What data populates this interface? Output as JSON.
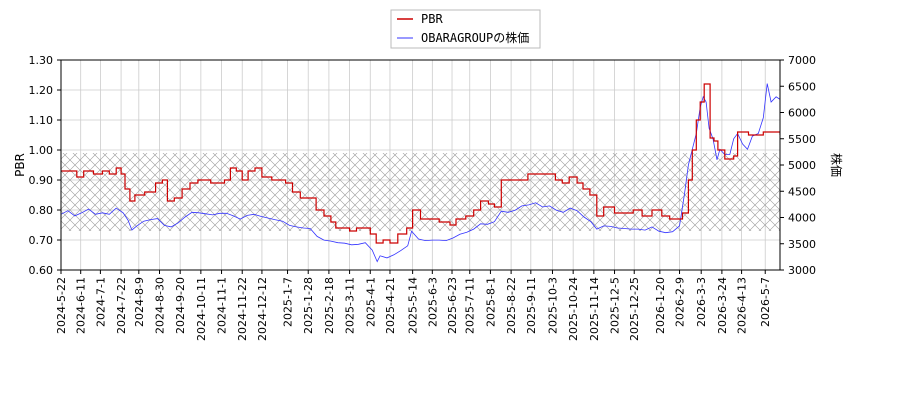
{
  "chart_data": {
    "type": "line",
    "legend": {
      "placement": "top-center",
      "entries": [
        {
          "label": "PBR",
          "color": "#cc0000"
        },
        {
          "label": "OBARAGROUPの株価",
          "color": "#3333ff"
        }
      ]
    },
    "xlabel": "",
    "ylabel": "PBR",
    "ylabel_right": "株価",
    "ylim": [
      0.6,
      1.3
    ],
    "ylim_right": [
      3000,
      7000
    ],
    "yticks": [
      "0.60",
      "0.70",
      "0.80",
      "0.90",
      "1.00",
      "1.10",
      "1.20",
      "1.30"
    ],
    "yticks_right": [
      "3000",
      "3500",
      "4000",
      "4500",
      "5000",
      "5500",
      "6000",
      "6500",
      "7000"
    ],
    "x_range": [
      "2024-05-22",
      "2026-05-22"
    ],
    "x_tick_labels": [
      "2024-5-22",
      "2024-6-11",
      "2024-7-1",
      "2024-7-22",
      "2024-8-9",
      "2024-8-30",
      "2024-9-20",
      "2024-10-11",
      "2024-11-1",
      "2024-11-22",
      "2024-12-12",
      "2025-1-7",
      "2025-1-28",
      "2025-2-18",
      "2025-3-11",
      "2025-4-1",
      "2025-4-21",
      "2025-5-14",
      "2025-6-3",
      "2025-6-23",
      "2025-7-11",
      "2025-8-1",
      "2025-8-22",
      "2025-9-11",
      "2025-10-3",
      "2025-10-24",
      "2025-11-14",
      "2025-12-5",
      "2025-12-25",
      "2026-1-20",
      "2026-2-9",
      "2026-3-3",
      "2026-3-24",
      "2026-4-13",
      "2026-5-7"
    ],
    "grid": true,
    "shaded_band": {
      "from": 0.73,
      "to": 0.99,
      "pattern": "crosshatch"
    },
    "series": [
      {
        "name": "PBR",
        "axis": "left",
        "color": "#cc0000",
        "points": [
          [
            "2024-05-22",
            0.93
          ],
          [
            "2024-06-04",
            0.93
          ],
          [
            "2024-06-07",
            0.91
          ],
          [
            "2024-06-14",
            0.93
          ],
          [
            "2024-06-24",
            0.92
          ],
          [
            "2024-07-03",
            0.93
          ],
          [
            "2024-07-10",
            0.92
          ],
          [
            "2024-07-17",
            0.94
          ],
          [
            "2024-07-22",
            0.92
          ],
          [
            "2024-07-26",
            0.87
          ],
          [
            "2024-07-31",
            0.83
          ],
          [
            "2024-08-05",
            0.85
          ],
          [
            "2024-08-15",
            0.86
          ],
          [
            "2024-08-26",
            0.89
          ],
          [
            "2024-09-02",
            0.9
          ],
          [
            "2024-09-07",
            0.83
          ],
          [
            "2024-09-14",
            0.84
          ],
          [
            "2024-09-22",
            0.87
          ],
          [
            "2024-09-30",
            0.89
          ],
          [
            "2024-10-08",
            0.9
          ],
          [
            "2024-10-21",
            0.89
          ],
          [
            "2024-11-04",
            0.9
          ],
          [
            "2024-11-10",
            0.94
          ],
          [
            "2024-11-16",
            0.93
          ],
          [
            "2024-11-22",
            0.9
          ],
          [
            "2024-11-28",
            0.93
          ],
          [
            "2024-12-05",
            0.94
          ],
          [
            "2024-12-12",
            0.91
          ],
          [
            "2024-12-22",
            0.9
          ],
          [
            "2025-01-05",
            0.89
          ],
          [
            "2025-01-12",
            0.86
          ],
          [
            "2025-01-20",
            0.84
          ],
          [
            "2025-01-30",
            0.84
          ],
          [
            "2025-02-05",
            0.8
          ],
          [
            "2025-02-13",
            0.78
          ],
          [
            "2025-02-20",
            0.76
          ],
          [
            "2025-02-25",
            0.74
          ],
          [
            "2025-03-05",
            0.74
          ],
          [
            "2025-03-11",
            0.73
          ],
          [
            "2025-03-18",
            0.74
          ],
          [
            "2025-03-27",
            0.74
          ],
          [
            "2025-04-01",
            0.72
          ],
          [
            "2025-04-07",
            0.69
          ],
          [
            "2025-04-14",
            0.7
          ],
          [
            "2025-04-21",
            0.69
          ],
          [
            "2025-04-29",
            0.72
          ],
          [
            "2025-05-08",
            0.74
          ],
          [
            "2025-05-14",
            0.8
          ],
          [
            "2025-05-22",
            0.77
          ],
          [
            "2025-06-03",
            0.77
          ],
          [
            "2025-06-10",
            0.76
          ],
          [
            "2025-06-21",
            0.75
          ],
          [
            "2025-06-27",
            0.77
          ],
          [
            "2025-07-07",
            0.78
          ],
          [
            "2025-07-15",
            0.8
          ],
          [
            "2025-07-22",
            0.83
          ],
          [
            "2025-07-30",
            0.82
          ],
          [
            "2025-08-05",
            0.81
          ],
          [
            "2025-08-12",
            0.9
          ],
          [
            "2025-08-22",
            0.9
          ],
          [
            "2025-09-03",
            0.9
          ],
          [
            "2025-09-08",
            0.92
          ],
          [
            "2025-09-20",
            0.92
          ],
          [
            "2025-09-30",
            0.92
          ],
          [
            "2025-10-06",
            0.9
          ],
          [
            "2025-10-13",
            0.89
          ],
          [
            "2025-10-20",
            0.91
          ],
          [
            "2025-10-28",
            0.89
          ],
          [
            "2025-11-03",
            0.87
          ],
          [
            "2025-11-10",
            0.85
          ],
          [
            "2025-11-17",
            0.78
          ],
          [
            "2025-11-24",
            0.81
          ],
          [
            "2025-12-05",
            0.79
          ],
          [
            "2025-12-14",
            0.79
          ],
          [
            "2025-12-24",
            0.8
          ],
          [
            "2026-01-02",
            0.78
          ],
          [
            "2026-01-12",
            0.8
          ],
          [
            "2026-01-22",
            0.78
          ],
          [
            "2026-01-30",
            0.77
          ],
          [
            "2026-02-06",
            0.77
          ],
          [
            "2026-02-12",
            0.79
          ],
          [
            "2026-02-18",
            0.9
          ],
          [
            "2026-02-22",
            1.0
          ],
          [
            "2026-02-26",
            1.1
          ],
          [
            "2026-03-02",
            1.16
          ],
          [
            "2026-03-06",
            1.22
          ],
          [
            "2026-03-12",
            1.04
          ],
          [
            "2026-03-16",
            1.03
          ],
          [
            "2026-03-20",
            1.0
          ],
          [
            "2026-03-27",
            0.97
          ],
          [
            "2026-04-05",
            0.98
          ],
          [
            "2026-04-09",
            1.06
          ],
          [
            "2026-04-20",
            1.05
          ],
          [
            "2026-04-28",
            1.05
          ],
          [
            "2026-05-05",
            1.06
          ],
          [
            "2026-05-22",
            1.05
          ]
        ]
      },
      {
        "name": "OBARAGROUPの株価",
        "axis": "right",
        "color": "#3333ff",
        "points": [
          [
            "2024-05-22",
            4060
          ],
          [
            "2024-05-29",
            4130
          ],
          [
            "2024-06-05",
            4030
          ],
          [
            "2024-06-12",
            4090
          ],
          [
            "2024-06-19",
            4160
          ],
          [
            "2024-06-26",
            4060
          ],
          [
            "2024-07-03",
            4090
          ],
          [
            "2024-07-10",
            4060
          ],
          [
            "2024-07-17",
            4180
          ],
          [
            "2024-07-24",
            4090
          ],
          [
            "2024-07-29",
            3950
          ],
          [
            "2024-08-02",
            3760
          ],
          [
            "2024-08-07",
            3840
          ],
          [
            "2024-08-14",
            3930
          ],
          [
            "2024-08-21",
            3960
          ],
          [
            "2024-08-28",
            3980
          ],
          [
            "2024-09-04",
            3850
          ],
          [
            "2024-09-11",
            3820
          ],
          [
            "2024-09-18",
            3900
          ],
          [
            "2024-09-25",
            4010
          ],
          [
            "2024-10-02",
            4100
          ],
          [
            "2024-10-09",
            4090
          ],
          [
            "2024-10-16",
            4070
          ],
          [
            "2024-10-23",
            4050
          ],
          [
            "2024-10-30",
            4080
          ],
          [
            "2024-11-06",
            4080
          ],
          [
            "2024-11-13",
            4030
          ],
          [
            "2024-11-20",
            3970
          ],
          [
            "2024-11-27",
            4040
          ],
          [
            "2024-12-04",
            4060
          ],
          [
            "2024-12-11",
            4020
          ],
          [
            "2024-12-18",
            3990
          ],
          [
            "2024-12-25",
            3960
          ],
          [
            "2025-01-02",
            3930
          ],
          [
            "2025-01-09",
            3850
          ],
          [
            "2025-01-16",
            3820
          ],
          [
            "2025-01-23",
            3800
          ],
          [
            "2025-01-30",
            3790
          ],
          [
            "2025-02-06",
            3640
          ],
          [
            "2025-02-13",
            3570
          ],
          [
            "2025-02-20",
            3550
          ],
          [
            "2025-02-27",
            3520
          ],
          [
            "2025-03-06",
            3510
          ],
          [
            "2025-03-13",
            3480
          ],
          [
            "2025-03-20",
            3490
          ],
          [
            "2025-03-27",
            3520
          ],
          [
            "2025-04-03",
            3380
          ],
          [
            "2025-04-08",
            3160
          ],
          [
            "2025-04-11",
            3270
          ],
          [
            "2025-04-18",
            3230
          ],
          [
            "2025-04-25",
            3290
          ],
          [
            "2025-05-02",
            3370
          ],
          [
            "2025-05-09",
            3460
          ],
          [
            "2025-05-13",
            3740
          ],
          [
            "2025-05-20",
            3590
          ],
          [
            "2025-05-27",
            3560
          ],
          [
            "2025-06-03",
            3570
          ],
          [
            "2025-06-10",
            3570
          ],
          [
            "2025-06-17",
            3560
          ],
          [
            "2025-06-24",
            3610
          ],
          [
            "2025-07-01",
            3680
          ],
          [
            "2025-07-08",
            3720
          ],
          [
            "2025-07-15",
            3780
          ],
          [
            "2025-07-22",
            3880
          ],
          [
            "2025-07-29",
            3870
          ],
          [
            "2025-08-05",
            3920
          ],
          [
            "2025-08-12",
            4120
          ],
          [
            "2025-08-19",
            4100
          ],
          [
            "2025-08-26",
            4140
          ],
          [
            "2025-09-02",
            4220
          ],
          [
            "2025-09-09",
            4240
          ],
          [
            "2025-09-16",
            4280
          ],
          [
            "2025-09-23",
            4200
          ],
          [
            "2025-09-30",
            4220
          ],
          [
            "2025-10-07",
            4140
          ],
          [
            "2025-10-14",
            4100
          ],
          [
            "2025-10-21",
            4180
          ],
          [
            "2025-10-28",
            4130
          ],
          [
            "2025-11-04",
            4010
          ],
          [
            "2025-11-11",
            3920
          ],
          [
            "2025-11-17",
            3780
          ],
          [
            "2025-11-24",
            3840
          ],
          [
            "2025-12-01",
            3830
          ],
          [
            "2025-12-08",
            3800
          ],
          [
            "2025-12-15",
            3790
          ],
          [
            "2025-12-22",
            3780
          ],
          [
            "2025-12-29",
            3780
          ],
          [
            "2026-01-05",
            3760
          ],
          [
            "2026-01-12",
            3820
          ],
          [
            "2026-01-19",
            3740
          ],
          [
            "2026-01-26",
            3710
          ],
          [
            "2026-02-02",
            3730
          ],
          [
            "2026-02-09",
            3840
          ],
          [
            "2026-02-14",
            4450
          ],
          [
            "2026-02-18",
            5000
          ],
          [
            "2026-02-22",
            5300
          ],
          [
            "2026-02-26",
            5600
          ],
          [
            "2026-03-02",
            6100
          ],
          [
            "2026-03-05",
            6300
          ],
          [
            "2026-03-08",
            6200
          ],
          [
            "2026-03-11",
            5700
          ],
          [
            "2026-03-15",
            5500
          ],
          [
            "2026-03-19",
            5100
          ],
          [
            "2026-03-22",
            5300
          ],
          [
            "2026-03-27",
            5200
          ],
          [
            "2026-04-01",
            5200
          ],
          [
            "2026-04-05",
            5500
          ],
          [
            "2026-04-09",
            5600
          ],
          [
            "2026-04-14",
            5400
          ],
          [
            "2026-04-19",
            5300
          ],
          [
            "2026-04-24",
            5550
          ],
          [
            "2026-04-30",
            5600
          ],
          [
            "2026-05-05",
            5900
          ],
          [
            "2026-05-09",
            6550
          ],
          [
            "2026-05-13",
            6200
          ],
          [
            "2026-05-18",
            6300
          ],
          [
            "2026-05-22",
            6250
          ]
        ]
      }
    ]
  }
}
